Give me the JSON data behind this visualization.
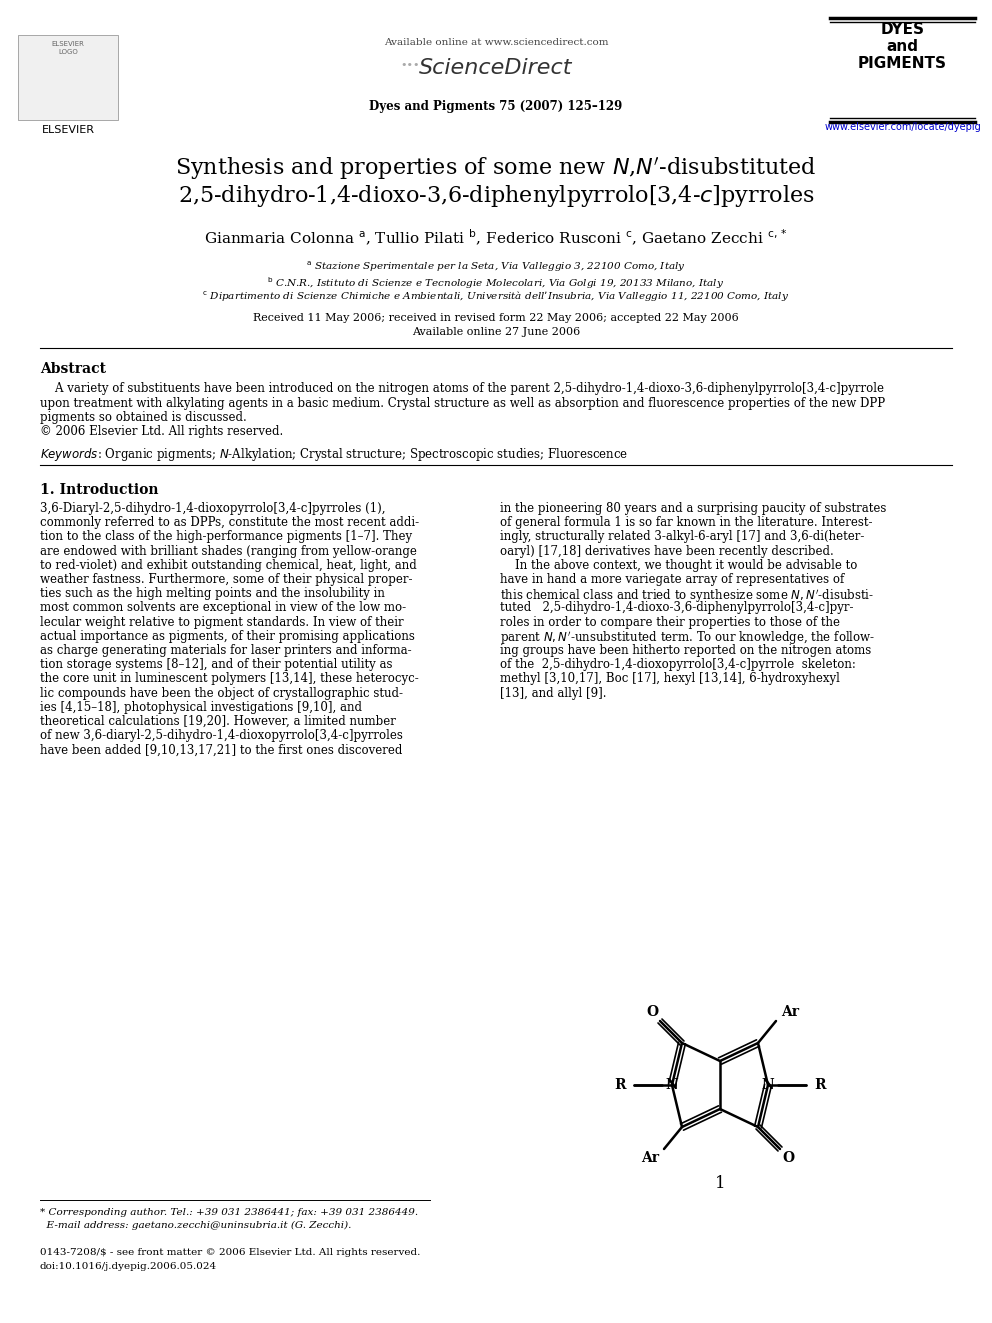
{
  "bg_color": "#ffffff",
  "page_width": 9.92,
  "page_height": 13.23,
  "header_available": "Available online at www.sciencedirect.com",
  "header_journal": "Dyes and Pigments 75 (2007) 125–129",
  "header_url": "www.elsevier.com/locate/dyepig",
  "title_line1": "Synthesis and properties of some new $N$,$N'$-disubstituted",
  "title_line2": "2,5-dihydro-1,4-dioxo-3,6-diphenylpyrrolo[3,4-$c$]pyrroles",
  "authors": "Gianmaria Colonna $^{\\rm a}$, Tullio Pilati $^{\\rm b}$, Federico Rusconi $^{\\rm c}$, Gaetano Zecchi $^{\\rm c,*}$",
  "aff_a": "$^{\\rm a}$ Stazione Sperimentale per la Seta, Via Valleggio 3, 22100 Como, Italy",
  "aff_b": "$^{\\rm b}$ C.N.R., Istituto di Scienze e Tecnologie Molecolari, Via Golgi 19, 20133 Milano, Italy",
  "aff_c": "$^{\\rm c}$ Dipartimento di Scienze Chimiche e Ambientali, Università dell’Insubria, Via Valleggio 11, 22100 Como, Italy",
  "received": "Received 11 May 2006; received in revised form 22 May 2006; accepted 22 May 2006",
  "available_online": "Available online 27 June 2006",
  "abstract_title": "Abstract",
  "abstract_body": "    A variety of substituents have been introduced on the nitrogen atoms of the parent 2,5-dihydro-1,4-dioxo-3,6-diphenylpyrrolo[3,4-c]pyrrole\nupon treatment with alkylating agents in a basic medium. Crystal structure as well as absorption and fluorescence properties of the new DPP\npigments so obtained is discussed.\n© 2006 Elsevier Ltd. All rights reserved.",
  "keywords": "Organic pigments; N-Alkylation; Crystal structure; Spectroscopic studies; Fluorescence",
  "intro_heading": "1. Introduction",
  "col1_lines": [
    "3,6-Diaryl-2,5-dihydro-1,4-dioxopyrrolo[3,4-c]pyrroles (1),",
    "commonly referred to as DPPs, constitute the most recent addi-",
    "tion to the class of the high-performance pigments [1–7]. They",
    "are endowed with brilliant shades (ranging from yellow-orange",
    "to red-violet) and exhibit outstanding chemical, heat, light, and",
    "weather fastness. Furthermore, some of their physical proper-",
    "ties such as the high melting points and the insolubility in",
    "most common solvents are exceptional in view of the low mo-",
    "lecular weight relative to pigment standards. In view of their",
    "actual importance as pigments, of their promising applications",
    "as charge generating materials for laser printers and informa-",
    "tion storage systems [8–12], and of their potential utility as",
    "the core unit in luminescent polymers [13,14], these heterocyc-",
    "lic compounds have been the object of crystallographic stud-",
    "ies [4,15–18], photophysical investigations [9,10], and",
    "theoretical calculations [19,20]. However, a limited number",
    "of new 3,6-diaryl-2,5-dihydro-1,4-dioxopyrrolo[3,4-c]pyrroles",
    "have been added [9,10,13,17,21] to the first ones discovered"
  ],
  "col2_lines": [
    "in the pioneering 80 years and a surprising paucity of substrates",
    "of general formula 1 is so far known in the literature. Interest-",
    "ingly, structurally related 3-alkyl-6-aryl [17] and 3,6-di(heter-",
    "oaryl) [17,18] derivatives have been recently described.",
    "    In the above context, we thought it would be advisable to",
    "have in hand a more variegate array of representatives of",
    "this chemical class and tried to synthesize some $N,N'$-disubsti-",
    "tuted   2,5-dihydro-1,4-dioxo-3,6-diphenylpyrrolo[3,4-c]pyr-",
    "roles in order to compare their properties to those of the",
    "parent $N,N'$-unsubstituted term. To our knowledge, the follow-",
    "ing groups have been hitherto reported on the nitrogen atoms",
    "of the  2,5-dihydro-1,4-dioxopyrrolo[3,4-c]pyrrole  skeleton:",
    "methyl [3,10,17], Boc [17], hexyl [13,14], 6-hydroxyhexyl",
    "[13], and allyl [9]."
  ],
  "footnote1": "* Corresponding author. Tel.: +39 031 2386441; fax: +39 031 2386449.",
  "footnote2": "  E-mail address: gaetano.zecchi@uninsubria.it (G. Zecchi).",
  "footer1": "0143-7208/$ - see front matter © 2006 Elsevier Ltd. All rights reserved.",
  "footer2": "doi:10.1016/j.dyepig.2006.05.024"
}
